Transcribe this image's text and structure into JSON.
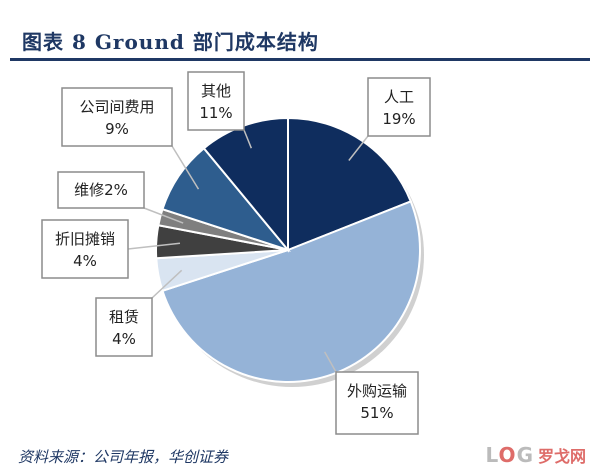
{
  "figure": {
    "title": "图表 8 Ground 部门成本结构",
    "source": "资料来源：公司年报，华创证券"
  },
  "colors": {
    "title": "#1f3864",
    "callout_border": "#8c8c8c",
    "slice_edge": "#ffffff"
  },
  "chart_data": {
    "type": "pie",
    "title": "",
    "slices": [
      {
        "label": "人工",
        "value": 19,
        "display": "19%",
        "color": "#0f2d5e"
      },
      {
        "label": "外购运输",
        "value": 51,
        "display": "51%",
        "color": "#95b3d7"
      },
      {
        "label": "租赁",
        "value": 4,
        "display": "4%",
        "color": "#d9e4f1"
      },
      {
        "label": "折旧摊销",
        "value": 4,
        "display": "4%",
        "color": "#404040"
      },
      {
        "label": "维修",
        "value": 2,
        "display": "2%",
        "color": "#7f7f7f"
      },
      {
        "label": "公司间费用",
        "value": 9,
        "display": "9%",
        "color": "#2e5d8e"
      },
      {
        "label": "其他",
        "value": 11,
        "display": "11%",
        "color": "#0f2d5e"
      }
    ],
    "start_angle_deg": 0,
    "direction": "clockwise",
    "legend": "none",
    "data_labels": "callouts"
  },
  "watermark": {
    "logo": "LOG",
    "text": "罗戈网"
  }
}
